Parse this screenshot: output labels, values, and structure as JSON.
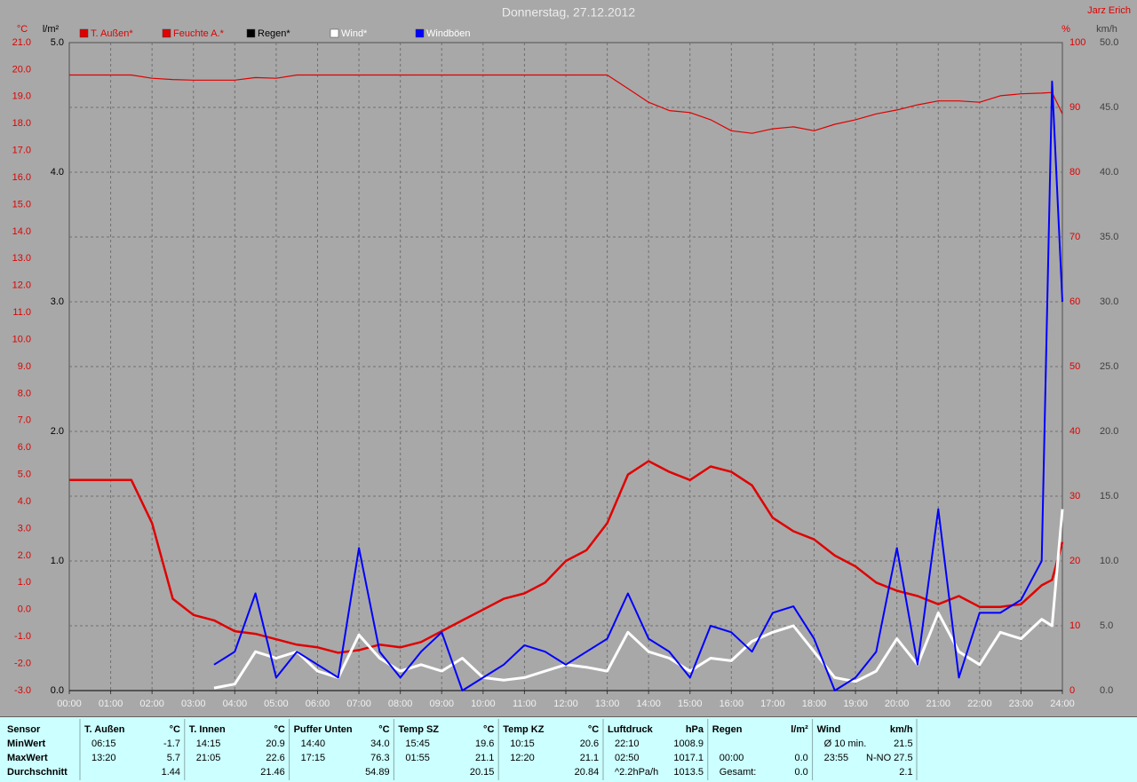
{
  "chart_data": {
    "type": "line",
    "title": "Donnerstag, 27.12.2012",
    "author": "Jarz Erich",
    "grid": true,
    "x": [
      0,
      0.5,
      1,
      1.5,
      2,
      2.5,
      3,
      3.5,
      4,
      4.5,
      5,
      5.5,
      6,
      6.5,
      7,
      7.5,
      8,
      8.5,
      9,
      9.5,
      10,
      10.5,
      11,
      11.5,
      12,
      12.5,
      13,
      13.5,
      14,
      14.5,
      15,
      15.5,
      16,
      16.5,
      17,
      17.5,
      18,
      18.5,
      19,
      19.5,
      20,
      20.5,
      21,
      21.5,
      22,
      22.5,
      23,
      23.5,
      23.75,
      24
    ],
    "xlim": [
      0,
      24
    ],
    "xticks": [
      {
        "value": 0,
        "label": "00:00"
      },
      {
        "value": 1,
        "label": "01:00"
      },
      {
        "value": 2,
        "label": "02:00"
      },
      {
        "value": 3,
        "label": "03:00"
      },
      {
        "value": 4,
        "label": "04:00"
      },
      {
        "value": 5,
        "label": "05:00"
      },
      {
        "value": 6,
        "label": "06:00"
      },
      {
        "value": 7,
        "label": "07:00"
      },
      {
        "value": 8,
        "label": "08:00"
      },
      {
        "value": 9,
        "label": "09:00"
      },
      {
        "value": 10,
        "label": "10:00"
      },
      {
        "value": 11,
        "label": "11:00"
      },
      {
        "value": 12,
        "label": "12:00"
      },
      {
        "value": 13,
        "label": "13:00"
      },
      {
        "value": 14,
        "label": "14:00"
      },
      {
        "value": 15,
        "label": "15:00"
      },
      {
        "value": 16,
        "label": "16:00"
      },
      {
        "value": 17,
        "label": "17:00"
      },
      {
        "value": 18,
        "label": "18:00"
      },
      {
        "value": 19,
        "label": "19:00"
      },
      {
        "value": 20,
        "label": "20:00"
      },
      {
        "value": 21,
        "label": "21:00"
      },
      {
        "value": 22,
        "label": "22:00"
      },
      {
        "value": 23,
        "label": "23:00"
      },
      {
        "value": 24,
        "label": "24:00"
      }
    ],
    "axes": [
      {
        "id": "temp",
        "label": "°C",
        "color": "#e00000",
        "lim": [
          -3,
          21
        ],
        "ticks": [
          {
            "value": 21,
            "label": "21.0"
          },
          {
            "value": 20,
            "label": "20.0"
          },
          {
            "value": 19,
            "label": "19.0"
          },
          {
            "value": 18,
            "label": "18.0"
          },
          {
            "value": 17,
            "label": "17.0"
          },
          {
            "value": 16,
            "label": "16.0"
          },
          {
            "value": 15,
            "label": "15.0"
          },
          {
            "value": 14,
            "label": "14.0"
          },
          {
            "value": 13,
            "label": "13.0"
          },
          {
            "value": 12,
            "label": "12.0"
          },
          {
            "value": 11,
            "label": "11.0"
          },
          {
            "value": 10,
            "label": "10.0"
          },
          {
            "value": 9,
            "label": "9.0"
          },
          {
            "value": 8,
            "label": "8.0"
          },
          {
            "value": 7,
            "label": "7.0"
          },
          {
            "value": 6,
            "label": "6.0"
          },
          {
            "value": 5,
            "label": "5.0"
          },
          {
            "value": 4,
            "label": "4.0"
          },
          {
            "value": 3,
            "label": "3.0"
          },
          {
            "value": 2,
            "label": "2.0"
          },
          {
            "value": 1,
            "label": "1.0"
          },
          {
            "value": 0,
            "label": "0.0"
          },
          {
            "value": -1,
            "label": "-1.0"
          },
          {
            "value": -2,
            "label": "-2.0"
          },
          {
            "value": -3,
            "label": "-3.0"
          }
        ]
      },
      {
        "id": "rain",
        "label": "l/m²",
        "color": "#000000",
        "lim": [
          0,
          5
        ],
        "ticks": [
          {
            "value": 5,
            "label": "5.0"
          },
          {
            "value": 4,
            "label": "4.0"
          },
          {
            "value": 3,
            "label": "3.0"
          },
          {
            "value": 2,
            "label": "2.0"
          },
          {
            "value": 1,
            "label": "1.0"
          },
          {
            "value": 0,
            "label": "0.0"
          }
        ]
      },
      {
        "id": "hum",
        "label": "%",
        "color": "#e00000",
        "lim": [
          0,
          100
        ],
        "grid": true,
        "ticks": [
          100,
          90,
          80,
          70,
          60,
          50,
          40,
          30,
          20,
          10,
          0
        ]
      },
      {
        "id": "wind",
        "label": "km/h",
        "color": "#404040",
        "lim": [
          0,
          50
        ],
        "ticks": [
          {
            "value": 50,
            "label": "50.0"
          },
          {
            "value": 45,
            "label": "45.0"
          },
          {
            "value": 40,
            "label": "40.0"
          },
          {
            "value": 35,
            "label": "35.0"
          },
          {
            "value": 30,
            "label": "30.0"
          },
          {
            "value": 25,
            "label": "25.0"
          },
          {
            "value": 20,
            "label": "20.0"
          },
          {
            "value": 15,
            "label": "15.0"
          },
          {
            "value": 10,
            "label": "10.0"
          },
          {
            "value": 5,
            "label": "5.0"
          },
          {
            "value": 0,
            "label": "0.0"
          }
        ]
      }
    ],
    "series": [
      {
        "name": "T. Außen*",
        "axis": "temp",
        "color": "#e00000",
        "legend_text_color": "#e00000",
        "line_width": 2.5,
        "values": [
          4.8,
          4.8,
          4.8,
          4.8,
          3.2,
          0.4,
          -0.2,
          -0.4,
          -0.8,
          -0.9,
          -1.1,
          -1.3,
          -1.4,
          -1.6,
          -1.5,
          -1.3,
          -1.4,
          -1.2,
          -0.8,
          -0.4,
          0.0,
          0.4,
          0.6,
          1.0,
          1.8,
          2.2,
          3.2,
          5.0,
          5.5,
          5.1,
          4.8,
          5.3,
          5.1,
          4.6,
          3.4,
          2.9,
          2.6,
          2.0,
          1.6,
          1.0,
          0.7,
          0.5,
          0.2,
          0.5,
          0.1,
          0.1,
          0.2,
          0.9,
          1.1,
          2.5
        ]
      },
      {
        "name": "Feuchte A.*",
        "axis": "hum",
        "color": "#e00000",
        "legend_text_color": "#e00000",
        "line_width": 1.2,
        "values": [
          95,
          95,
          95,
          95,
          94.5,
          94.3,
          94.2,
          94.2,
          94.2,
          94.6,
          94.5,
          95,
          95,
          95,
          95,
          95,
          95,
          95,
          95,
          95,
          95,
          95,
          95,
          95,
          95,
          95,
          95,
          92.9,
          90.8,
          89.5,
          89.2,
          88.1,
          86.4,
          86.0,
          86.7,
          87.0,
          86.4,
          87.4,
          88.1,
          89.0,
          89.6,
          90.4,
          91.0,
          91.0,
          90.8,
          91.8,
          92.1,
          92.2,
          92.3,
          89.0
        ]
      },
      {
        "name": "Regen*",
        "axis": "rain",
        "color": "#000000",
        "legend_text_color": "#000000",
        "line_width": 1,
        "values": [
          0,
          0,
          0,
          0,
          0,
          0,
          0,
          0,
          0,
          0,
          0,
          0,
          0,
          0,
          0,
          0,
          0,
          0,
          0,
          0,
          0,
          0,
          0,
          0,
          0,
          0,
          0,
          0,
          0,
          0,
          0,
          0,
          0,
          0,
          0,
          0,
          0,
          0,
          0,
          0,
          0,
          0,
          0,
          0,
          0,
          0,
          0,
          0,
          0,
          0
        ]
      },
      {
        "name": "Wind*",
        "axis": "wind",
        "color": "#ffffff",
        "legend_text_color": "#ffffff",
        "line_width": 3,
        "values": [
          null,
          null,
          null,
          null,
          null,
          null,
          null,
          0.2,
          0.5,
          3.0,
          2.5,
          3.0,
          1.5,
          1.0,
          4.3,
          2.5,
          1.5,
          2.0,
          1.5,
          2.5,
          1.0,
          0.8,
          1.0,
          1.5,
          2.0,
          1.8,
          1.5,
          4.5,
          3.0,
          2.5,
          1.5,
          2.5,
          2.3,
          3.8,
          4.5,
          5.0,
          3.0,
          1.0,
          0.7,
          1.5,
          4.0,
          2.0,
          6.0,
          3.0,
          2.0,
          4.5,
          4.0,
          5.5,
          5.0,
          14.0
        ]
      },
      {
        "name": "Windböen",
        "axis": "wind",
        "color": "#0000ff",
        "legend_text_color": "#ffffff",
        "line_width": 2,
        "values": [
          null,
          null,
          null,
          null,
          null,
          null,
          null,
          2.0,
          3.0,
          7.5,
          1.0,
          3.0,
          2.0,
          1.0,
          11.0,
          3.0,
          1.0,
          3.0,
          4.5,
          0.0,
          1.0,
          2.0,
          3.5,
          3.0,
          2.0,
          3.0,
          4.0,
          7.5,
          4.0,
          3.0,
          1.0,
          5.0,
          4.5,
          3.0,
          6.0,
          6.5,
          4.0,
          0.0,
          1.0,
          3.0,
          11.0,
          2.0,
          14.0,
          1.0,
          6.0,
          6.0,
          7.0,
          10.0,
          47.0,
          30.0
        ]
      }
    ]
  },
  "table": {
    "header": "Sensor",
    "row_labels": [
      "MinWert",
      "MaxWert",
      "Durchschnitt"
    ],
    "groups": [
      {
        "name": "T. Außen",
        "unit": "°C",
        "rows": [
          [
            "06:15",
            "-1.7"
          ],
          [
            "13:20",
            "5.7"
          ],
          [
            null,
            "1.44"
          ]
        ]
      },
      {
        "name": "T. Innen",
        "unit": "°C",
        "rows": [
          [
            "14:15",
            "20.9"
          ],
          [
            "21:05",
            "22.6"
          ],
          [
            null,
            "21.46"
          ]
        ]
      },
      {
        "name": "Puffer Unten",
        "unit": "°C",
        "rows": [
          [
            "14:40",
            "34.0"
          ],
          [
            "17:15",
            "76.3"
          ],
          [
            null,
            "54.89"
          ]
        ]
      },
      {
        "name": "Temp SZ",
        "unit": "°C",
        "rows": [
          [
            "15:45",
            "19.6"
          ],
          [
            "01:55",
            "21.1"
          ],
          [
            null,
            "20.15"
          ]
        ]
      },
      {
        "name": "Temp KZ",
        "unit": "°C",
        "rows": [
          [
            "10:15",
            "20.6"
          ],
          [
            "12:20",
            "21.1"
          ],
          [
            null,
            "20.84"
          ]
        ]
      },
      {
        "name": "Luftdruck",
        "unit": "hPa",
        "rows": [
          [
            "22:10",
            "1008.9"
          ],
          [
            "02:50",
            "1017.1"
          ],
          [
            "^2.2hPa/h",
            "1013.5"
          ]
        ]
      },
      {
        "name": "Regen",
        "unit": "l/m²",
        "rows": [
          [
            null,
            null
          ],
          [
            "00:00",
            "0.0"
          ],
          [
            "Gesamt:",
            "0.0"
          ]
        ]
      },
      {
        "name": "Wind",
        "unit": "km/h",
        "rows": [
          [
            "Ø 10 min.",
            "21.5"
          ],
          [
            "23:55",
            "N-NO 27.5"
          ],
          [
            null,
            "2.1"
          ]
        ]
      }
    ]
  }
}
